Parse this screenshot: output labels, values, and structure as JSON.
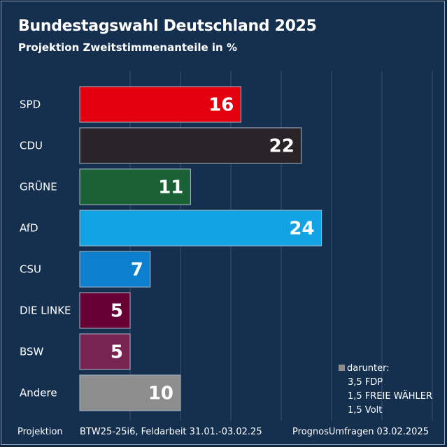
{
  "header": {
    "title": "Bundestagswahl Deutschland 2025",
    "subtitle": "Projektion Zweitstimmenanteile in %"
  },
  "chart_data": {
    "type": "bar",
    "orientation": "horizontal",
    "title": "Bundestagswahl Deutschland 2025",
    "subtitle": "Projektion Zweitstimmenanteile in %",
    "categories": [
      "SPD",
      "CDU",
      "GRÜNE",
      "AfD",
      "CSU",
      "DIE LINKE",
      "BSW",
      "Andere"
    ],
    "values": [
      16,
      22,
      11,
      24,
      7,
      5,
      5,
      10
    ],
    "colors": [
      "#e3000f",
      "#2a2328",
      "#1b6136",
      "#11a3e3",
      "#0d7fcf",
      "#660035",
      "#782453",
      "#8d8d8d"
    ],
    "xlim": [
      0,
      35
    ],
    "grid": true,
    "data_labels": true
  },
  "legend": {
    "heading": "darunter:",
    "items": [
      "3,5 FDP",
      "1,5 FREIE WÄHLER",
      "1,5 Volt"
    ]
  },
  "footer": {
    "left": "Projektion",
    "middle": "BTW25-25i6, Feldarbeit 31.01.-03.02.25",
    "right": "PrognosUmfragen 03.02.2025"
  }
}
